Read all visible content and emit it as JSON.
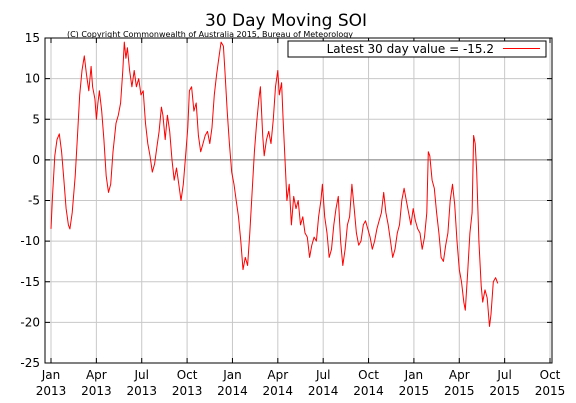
{
  "chart_data": {
    "type": "line",
    "title": "30 Day Moving SOI",
    "subtitle": "(C) Copyright Commonwealth of Australia 2015, Bureau of Meteorology",
    "xlabel": "",
    "ylabel": "",
    "ylim": [
      -25,
      15
    ],
    "yticks": [
      15,
      10,
      5,
      0,
      -5,
      -10,
      -15,
      -20,
      -25
    ],
    "xlim_months": [
      0,
      33
    ],
    "xticks": [
      {
        "m": 0,
        "line1": "Jan",
        "line2": "2013"
      },
      {
        "m": 3,
        "line1": "Apr",
        "line2": "2013"
      },
      {
        "m": 6,
        "line1": "Jul",
        "line2": "2013"
      },
      {
        "m": 9,
        "line1": "Oct",
        "line2": "2013"
      },
      {
        "m": 12,
        "line1": "Jan",
        "line2": "2014"
      },
      {
        "m": 15,
        "line1": "Apr",
        "line2": "2014"
      },
      {
        "m": 18,
        "line1": "Jul",
        "line2": "2014"
      },
      {
        "m": 21,
        "line1": "Oct",
        "line2": "2014"
      },
      {
        "m": 24,
        "line1": "Jan",
        "line2": "2015"
      },
      {
        "m": 27,
        "line1": "Apr",
        "line2": "2015"
      },
      {
        "m": 30,
        "line1": "Jul",
        "line2": "2015"
      },
      {
        "m": 33,
        "line1": "Oct",
        "line2": "2015"
      }
    ],
    "grid": true,
    "zero_line": true,
    "legend_position": "top-right",
    "series": [
      {
        "name": "Latest 30 day value = -15.2",
        "color": "#ff0000",
        "points": [
          [
            0.0,
            -8.5
          ],
          [
            0.1,
            -4.5
          ],
          [
            0.25,
            0.5
          ],
          [
            0.4,
            2.5
          ],
          [
            0.55,
            3.2
          ],
          [
            0.7,
            1.0
          ],
          [
            0.85,
            -2.5
          ],
          [
            1.0,
            -6.0
          ],
          [
            1.15,
            -8.0
          ],
          [
            1.25,
            -8.5
          ],
          [
            1.4,
            -6.5
          ],
          [
            1.6,
            -2.0
          ],
          [
            1.75,
            3.0
          ],
          [
            1.9,
            8.0
          ],
          [
            2.05,
            11.0
          ],
          [
            2.2,
            12.8
          ],
          [
            2.35,
            10.5
          ],
          [
            2.5,
            8.5
          ],
          [
            2.65,
            11.5
          ],
          [
            2.75,
            9.0
          ],
          [
            2.9,
            7.5
          ],
          [
            3.0,
            5.0
          ],
          [
            3.1,
            7.0
          ],
          [
            3.2,
            8.5
          ],
          [
            3.35,
            6.0
          ],
          [
            3.5,
            2.5
          ],
          [
            3.65,
            -2.0
          ],
          [
            3.8,
            -4.0
          ],
          [
            3.95,
            -3.0
          ],
          [
            4.1,
            1.0
          ],
          [
            4.3,
            4.5
          ],
          [
            4.45,
            5.5
          ],
          [
            4.6,
            7.0
          ],
          [
            4.75,
            11.0
          ],
          [
            4.85,
            14.5
          ],
          [
            4.95,
            12.5
          ],
          [
            5.05,
            13.8
          ],
          [
            5.2,
            11.0
          ],
          [
            5.35,
            9.0
          ],
          [
            5.5,
            11.0
          ],
          [
            5.65,
            9.0
          ],
          [
            5.8,
            10.0
          ],
          [
            5.95,
            8.0
          ],
          [
            6.1,
            8.5
          ],
          [
            6.25,
            4.5
          ],
          [
            6.4,
            2.0
          ],
          [
            6.55,
            0.5
          ],
          [
            6.7,
            -1.5
          ],
          [
            6.85,
            -0.5
          ],
          [
            7.0,
            1.5
          ],
          [
            7.15,
            3.5
          ],
          [
            7.3,
            6.5
          ],
          [
            7.4,
            5.5
          ],
          [
            7.55,
            2.5
          ],
          [
            7.7,
            5.5
          ],
          [
            7.85,
            3.5
          ],
          [
            8.0,
            0.0
          ],
          [
            8.15,
            -2.5
          ],
          [
            8.3,
            -1.0
          ],
          [
            8.45,
            -3.0
          ],
          [
            8.6,
            -5.0
          ],
          [
            8.75,
            -3.0
          ],
          [
            8.9,
            0.5
          ],
          [
            9.05,
            4.0
          ],
          [
            9.15,
            8.5
          ],
          [
            9.3,
            9.0
          ],
          [
            9.45,
            6.0
          ],
          [
            9.6,
            7.0
          ],
          [
            9.75,
            3.0
          ],
          [
            9.9,
            1.0
          ],
          [
            10.05,
            2.0
          ],
          [
            10.2,
            3.0
          ],
          [
            10.35,
            3.5
          ],
          [
            10.5,
            2.0
          ],
          [
            10.65,
            4.0
          ],
          [
            10.8,
            8.0
          ],
          [
            10.95,
            10.5
          ],
          [
            11.1,
            12.5
          ],
          [
            11.25,
            14.5
          ],
          [
            11.4,
            14.0
          ],
          [
            11.5,
            11.0
          ],
          [
            11.65,
            6.0
          ],
          [
            11.8,
            2.0
          ],
          [
            11.95,
            -1.5
          ],
          [
            12.1,
            -3.0
          ],
          [
            12.25,
            -5.0
          ],
          [
            12.4,
            -7.0
          ],
          [
            12.55,
            -10.0
          ],
          [
            12.7,
            -13.5
          ],
          [
            12.85,
            -12.0
          ],
          [
            13.0,
            -13.0
          ],
          [
            13.15,
            -9.0
          ],
          [
            13.3,
            -4.0
          ],
          [
            13.45,
            1.0
          ],
          [
            13.6,
            4.5
          ],
          [
            13.75,
            7.5
          ],
          [
            13.85,
            9.0
          ],
          [
            14.0,
            3.0
          ],
          [
            14.1,
            0.5
          ],
          [
            14.25,
            2.5
          ],
          [
            14.4,
            3.5
          ],
          [
            14.55,
            2.0
          ],
          [
            14.7,
            5.0
          ],
          [
            14.85,
            9.0
          ],
          [
            15.0,
            11.0
          ],
          [
            15.1,
            8.0
          ],
          [
            15.25,
            9.5
          ],
          [
            15.35,
            5.0
          ],
          [
            15.5,
            -1.0
          ],
          [
            15.6,
            -5.0
          ],
          [
            15.75,
            -3.0
          ],
          [
            15.9,
            -8.0
          ],
          [
            16.05,
            -4.5
          ],
          [
            16.2,
            -6.0
          ],
          [
            16.35,
            -5.0
          ],
          [
            16.5,
            -8.0
          ],
          [
            16.65,
            -7.0
          ],
          [
            16.8,
            -9.0
          ],
          [
            16.95,
            -9.5
          ],
          [
            17.1,
            -12.0
          ],
          [
            17.25,
            -10.5
          ],
          [
            17.4,
            -9.5
          ],
          [
            17.55,
            -10.0
          ],
          [
            17.7,
            -7.0
          ],
          [
            17.85,
            -5.0
          ],
          [
            17.95,
            -3.0
          ],
          [
            18.1,
            -7.0
          ],
          [
            18.25,
            -9.0
          ],
          [
            18.4,
            -12.0
          ],
          [
            18.55,
            -11.0
          ],
          [
            18.7,
            -8.0
          ],
          [
            18.85,
            -6.0
          ],
          [
            19.0,
            -4.5
          ],
          [
            19.15,
            -10.0
          ],
          [
            19.3,
            -13.0
          ],
          [
            19.45,
            -11.0
          ],
          [
            19.6,
            -8.0
          ],
          [
            19.75,
            -7.0
          ],
          [
            19.9,
            -3.0
          ],
          [
            20.05,
            -6.0
          ],
          [
            20.2,
            -9.0
          ],
          [
            20.35,
            -10.5
          ],
          [
            20.5,
            -10.0
          ],
          [
            20.65,
            -8.0
          ],
          [
            20.8,
            -7.5
          ],
          [
            20.95,
            -8.5
          ],
          [
            21.1,
            -9.5
          ],
          [
            21.25,
            -11.0
          ],
          [
            21.4,
            -10.0
          ],
          [
            21.55,
            -8.5
          ],
          [
            21.7,
            -7.5
          ],
          [
            21.85,
            -6.5
          ],
          [
            22.0,
            -4.0
          ],
          [
            22.15,
            -6.5
          ],
          [
            22.3,
            -8.0
          ],
          [
            22.45,
            -10.0
          ],
          [
            22.6,
            -12.0
          ],
          [
            22.75,
            -11.0
          ],
          [
            22.9,
            -9.0
          ],
          [
            23.05,
            -8.0
          ],
          [
            23.2,
            -5.0
          ],
          [
            23.35,
            -3.5
          ],
          [
            23.5,
            -5.0
          ],
          [
            23.65,
            -6.5
          ],
          [
            23.8,
            -8.0
          ],
          [
            23.95,
            -6.0
          ],
          [
            24.1,
            -7.5
          ],
          [
            24.25,
            -8.5
          ],
          [
            24.4,
            -9.0
          ],
          [
            24.55,
            -11.0
          ],
          [
            24.7,
            -9.5
          ],
          [
            24.85,
            -6.5
          ],
          [
            24.95,
            1.0
          ],
          [
            25.05,
            0.5
          ],
          [
            25.2,
            -2.5
          ],
          [
            25.35,
            -3.5
          ],
          [
            25.5,
            -6.5
          ],
          [
            25.65,
            -9.0
          ],
          [
            25.8,
            -12.0
          ],
          [
            25.95,
            -12.5
          ],
          [
            26.1,
            -10.5
          ],
          [
            26.25,
            -9.0
          ],
          [
            26.4,
            -5.0
          ],
          [
            26.55,
            -3.0
          ],
          [
            26.7,
            -5.5
          ],
          [
            26.85,
            -10.0
          ],
          [
            27.0,
            -13.5
          ],
          [
            27.15,
            -15.0
          ],
          [
            27.3,
            -17.5
          ],
          [
            27.4,
            -18.5
          ],
          [
            27.55,
            -14.0
          ],
          [
            27.7,
            -9.0
          ],
          [
            27.85,
            -6.5
          ],
          [
            27.95,
            3.0
          ],
          [
            28.05,
            2.0
          ],
          [
            28.15,
            -1.5
          ],
          [
            28.3,
            -10.0
          ],
          [
            28.45,
            -15.5
          ],
          [
            28.55,
            -17.5
          ],
          [
            28.7,
            -16.0
          ],
          [
            28.85,
            -17.0
          ],
          [
            29.0,
            -20.5
          ],
          [
            29.1,
            -19.0
          ],
          [
            29.25,
            -15.0
          ],
          [
            29.4,
            -14.5
          ],
          [
            29.55,
            -15.2
          ]
        ]
      }
    ]
  }
}
